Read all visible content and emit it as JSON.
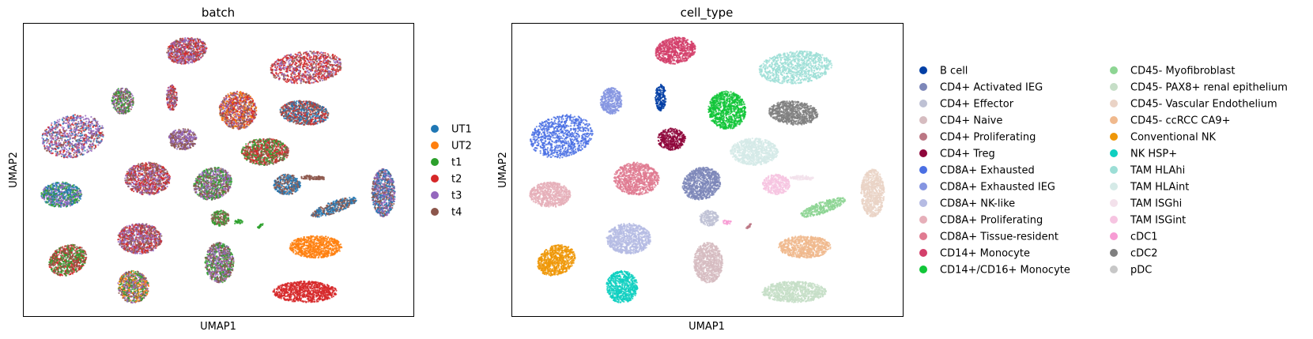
{
  "chart_data": [
    {
      "type": "scatter",
      "title": "batch",
      "xlabel": "UMAP1",
      "ylabel": "UMAP2",
      "legend": "right, outside",
      "series": [
        {
          "name": "UT1",
          "color": "#1f77b4"
        },
        {
          "name": "UT2",
          "color": "#ff7f0e"
        },
        {
          "name": "t1",
          "color": "#2ca02c"
        },
        {
          "name": "t2",
          "color": "#d62728"
        },
        {
          "name": "t3",
          "color": "#9467bd"
        },
        {
          "name": "t4",
          "color": "#8c564b"
        }
      ],
      "clusters": [
        {
          "x": 0.126,
          "y": 0.615,
          "rx": 0.081,
          "ry": 0.072,
          "rot": -12,
          "mix": [
            "t3",
            "t3",
            "t3",
            "t4",
            "t2",
            "UT1"
          ]
        },
        {
          "x": 0.418,
          "y": 0.908,
          "rx": 0.052,
          "ry": 0.045,
          "rot": -10,
          "mix": [
            "t4",
            "t2",
            "t3"
          ]
        },
        {
          "x": 0.725,
          "y": 0.85,
          "rx": 0.094,
          "ry": 0.055,
          "rot": -5,
          "mix": [
            "t2",
            "t4",
            "t3",
            "t2"
          ]
        },
        {
          "x": 0.254,
          "y": 0.736,
          "rx": 0.028,
          "ry": 0.045,
          "rot": 0,
          "mix": [
            "t1",
            "t3",
            "t4"
          ]
        },
        {
          "x": 0.38,
          "y": 0.747,
          "rx": 0.014,
          "ry": 0.045,
          "rot": 0,
          "mix": [
            "t4",
            "t2",
            "t3"
          ]
        },
        {
          "x": 0.55,
          "y": 0.704,
          "rx": 0.048,
          "ry": 0.065,
          "rot": -20,
          "mix": [
            "t4",
            "t3",
            "UT2",
            "t2"
          ]
        },
        {
          "x": 0.72,
          "y": 0.695,
          "rx": 0.063,
          "ry": 0.041,
          "rot": 5,
          "mix": [
            "t4",
            "t2",
            "UT1"
          ]
        },
        {
          "x": 0.408,
          "y": 0.605,
          "rx": 0.036,
          "ry": 0.037,
          "rot": 0,
          "mix": [
            "t3",
            "t4"
          ]
        },
        {
          "x": 0.62,
          "y": 0.562,
          "rx": 0.061,
          "ry": 0.046,
          "rot": 0,
          "mix": [
            "t4",
            "t2",
            "t1"
          ]
        },
        {
          "x": 0.318,
          "y": 0.47,
          "rx": 0.058,
          "ry": 0.056,
          "rot": 0,
          "mix": [
            "t4",
            "t2",
            "t3"
          ]
        },
        {
          "x": 0.485,
          "y": 0.453,
          "rx": 0.05,
          "ry": 0.054,
          "rot": -20,
          "mix": [
            "t1",
            "t4",
            "t3"
          ]
        },
        {
          "x": 0.097,
          "y": 0.415,
          "rx": 0.052,
          "ry": 0.043,
          "rot": 0,
          "mix": [
            "t1",
            "UT1",
            "t3"
          ]
        },
        {
          "x": 0.676,
          "y": 0.45,
          "rx": 0.035,
          "ry": 0.035,
          "rot": 0,
          "mix": [
            "UT1",
            "t4"
          ]
        },
        {
          "x": 0.796,
          "y": 0.372,
          "rx": 0.062,
          "ry": 0.02,
          "rot": -20,
          "mix": [
            "UT1",
            "t4"
          ]
        },
        {
          "x": 0.923,
          "y": 0.421,
          "rx": 0.03,
          "ry": 0.082,
          "rot": 0,
          "mix": [
            "t4",
            "t3",
            "UT1"
          ]
        },
        {
          "x": 0.504,
          "y": 0.335,
          "rx": 0.024,
          "ry": 0.027,
          "rot": 0,
          "mix": [
            "t1",
            "t4"
          ]
        },
        {
          "x": 0.298,
          "y": 0.265,
          "rx": 0.057,
          "ry": 0.052,
          "rot": 0,
          "mix": [
            "t3",
            "t4",
            "t2"
          ]
        },
        {
          "x": 0.749,
          "y": 0.237,
          "rx": 0.067,
          "ry": 0.038,
          "rot": 0,
          "mix": [
            "UT2"
          ]
        },
        {
          "x": 0.113,
          "y": 0.191,
          "rx": 0.05,
          "ry": 0.05,
          "rot": -25,
          "mix": [
            "t1",
            "t4",
            "t2"
          ]
        },
        {
          "x": 0.281,
          "y": 0.1,
          "rx": 0.04,
          "ry": 0.055,
          "rot": 0,
          "mix": [
            "t3",
            "t1",
            "UT2",
            "t4"
          ]
        },
        {
          "x": 0.502,
          "y": 0.183,
          "rx": 0.037,
          "ry": 0.069,
          "rot": 0,
          "mix": [
            "t4",
            "t1",
            "t3"
          ]
        },
        {
          "x": 0.722,
          "y": 0.083,
          "rx": 0.082,
          "ry": 0.036,
          "rot": 0,
          "mix": [
            "t2"
          ]
        },
        {
          "x": 0.55,
          "y": 0.322,
          "rx": 0.012,
          "ry": 0.008,
          "rot": 0,
          "mix": [
            "t1"
          ]
        },
        {
          "x": 0.737,
          "y": 0.474,
          "rx": 0.025,
          "ry": 0.008,
          "rot": 0,
          "mix": [
            "t4"
          ]
        },
        {
          "x": 0.761,
          "y": 0.471,
          "rx": 0.012,
          "ry": 0.006,
          "rot": 0,
          "mix": [
            "t4"
          ]
        },
        {
          "x": 0.607,
          "y": 0.308,
          "rx": 0.01,
          "ry": 0.004,
          "rot": -40,
          "mix": [
            "t1"
          ]
        }
      ]
    },
    {
      "type": "scatter",
      "title": "cell_type",
      "xlabel": "UMAP1",
      "ylabel": "UMAP2",
      "legend": "right, outside, two columns",
      "series": [
        {
          "name": "B cell",
          "color": "#023fa5"
        },
        {
          "name": "CD4+ Activated IEG",
          "color": "#7d87b9"
        },
        {
          "name": "CD4+ Effector",
          "color": "#bec1d4"
        },
        {
          "name": "CD4+ Naive",
          "color": "#d6bcc0"
        },
        {
          "name": "CD4+ Proliferating",
          "color": "#bb7784"
        },
        {
          "name": "CD4+ Treg",
          "color": "#8e063b"
        },
        {
          "name": "CD8A+ Exhausted",
          "color": "#4a6fe3"
        },
        {
          "name": "CD8A+ Exhausted IEG",
          "color": "#8595e1"
        },
        {
          "name": "CD8A+ NK-like",
          "color": "#b5bbe3"
        },
        {
          "name": "CD8A+ Proliferating",
          "color": "#e6afb9"
        },
        {
          "name": "CD8A+ Tissue-resident",
          "color": "#e07b91"
        },
        {
          "name": "CD14+ Monocyte",
          "color": "#d33f6a"
        },
        {
          "name": "CD14+/CD16+ Monocyte",
          "color": "#11c638"
        },
        {
          "name": "CD45- Myofibroblast",
          "color": "#8dd593"
        },
        {
          "name": "CD45- PAX8+ renal epithelium",
          "color": "#c6dec7"
        },
        {
          "name": "CD45- Vascular Endothelium",
          "color": "#ead3c6"
        },
        {
          "name": "CD45- ccRCC CA9+",
          "color": "#f0b98d"
        },
        {
          "name": "Conventional NK",
          "color": "#ef9708"
        },
        {
          "name": "NK HSP+",
          "color": "#0fcfc0"
        },
        {
          "name": "TAM HLAhi",
          "color": "#9cded6"
        },
        {
          "name": "TAM HLAint",
          "color": "#d5eae7"
        },
        {
          "name": "TAM ISGhi",
          "color": "#f3e1eb"
        },
        {
          "name": "TAM ISGint",
          "color": "#f6c4e1"
        },
        {
          "name": "cDC1",
          "color": "#f79cd4"
        },
        {
          "name": "cDC2",
          "color": "#7f7f7f"
        },
        {
          "name": "pDC",
          "color": "#c7c7c7"
        }
      ],
      "clusters": [
        {
          "x": 0.126,
          "y": 0.615,
          "rx": 0.081,
          "ry": 0.072,
          "rot": -12,
          "type": "CD8A+ Exhausted"
        },
        {
          "x": 0.418,
          "y": 0.908,
          "rx": 0.052,
          "ry": 0.045,
          "rot": -10,
          "type": "CD14+ Monocyte"
        },
        {
          "x": 0.725,
          "y": 0.85,
          "rx": 0.094,
          "ry": 0.055,
          "rot": -5,
          "type": "TAM HLAhi"
        },
        {
          "x": 0.254,
          "y": 0.736,
          "rx": 0.028,
          "ry": 0.045,
          "rot": 0,
          "type": "CD8A+ Exhausted IEG"
        },
        {
          "x": 0.38,
          "y": 0.747,
          "rx": 0.014,
          "ry": 0.045,
          "rot": 0,
          "type": "B cell"
        },
        {
          "x": 0.55,
          "y": 0.704,
          "rx": 0.048,
          "ry": 0.065,
          "rot": -20,
          "type": "CD14+/CD16+ Monocyte"
        },
        {
          "x": 0.72,
          "y": 0.695,
          "rx": 0.063,
          "ry": 0.041,
          "rot": 5,
          "type": "cDC2"
        },
        {
          "x": 0.408,
          "y": 0.605,
          "rx": 0.036,
          "ry": 0.037,
          "rot": 0,
          "type": "CD4+ Treg"
        },
        {
          "x": 0.62,
          "y": 0.562,
          "rx": 0.061,
          "ry": 0.046,
          "rot": 0,
          "type": "TAM HLAint"
        },
        {
          "x": 0.318,
          "y": 0.47,
          "rx": 0.058,
          "ry": 0.056,
          "rot": 0,
          "type": "CD8A+ Tissue-resident"
        },
        {
          "x": 0.485,
          "y": 0.453,
          "rx": 0.05,
          "ry": 0.054,
          "rot": -20,
          "type": "CD4+ Activated IEG"
        },
        {
          "x": 0.097,
          "y": 0.415,
          "rx": 0.052,
          "ry": 0.043,
          "rot": 0,
          "type": "CD8A+ Proliferating"
        },
        {
          "x": 0.676,
          "y": 0.45,
          "rx": 0.035,
          "ry": 0.035,
          "rot": 0,
          "type": "TAM ISGint"
        },
        {
          "x": 0.796,
          "y": 0.372,
          "rx": 0.062,
          "ry": 0.02,
          "rot": -20,
          "type": "CD45- Myofibroblast"
        },
        {
          "x": 0.923,
          "y": 0.421,
          "rx": 0.03,
          "ry": 0.082,
          "rot": 0,
          "type": "CD45- Vascular Endothelium"
        },
        {
          "x": 0.504,
          "y": 0.335,
          "rx": 0.024,
          "ry": 0.027,
          "rot": 0,
          "type": "CD4+ Effector"
        },
        {
          "x": 0.298,
          "y": 0.265,
          "rx": 0.057,
          "ry": 0.052,
          "rot": 0,
          "type": "CD8A+ NK-like"
        },
        {
          "x": 0.749,
          "y": 0.237,
          "rx": 0.067,
          "ry": 0.038,
          "rot": 0,
          "type": "CD45- ccRCC CA9+"
        },
        {
          "x": 0.113,
          "y": 0.191,
          "rx": 0.05,
          "ry": 0.05,
          "rot": -25,
          "type": "Conventional NK"
        },
        {
          "x": 0.281,
          "y": 0.1,
          "rx": 0.04,
          "ry": 0.055,
          "rot": 0,
          "type": "NK HSP+"
        },
        {
          "x": 0.502,
          "y": 0.183,
          "rx": 0.037,
          "ry": 0.069,
          "rot": 0,
          "type": "CD4+ Naive"
        },
        {
          "x": 0.722,
          "y": 0.083,
          "rx": 0.082,
          "ry": 0.036,
          "rot": 0,
          "type": "CD45- PAX8+ renal epithelium"
        },
        {
          "x": 0.55,
          "y": 0.322,
          "rx": 0.012,
          "ry": 0.008,
          "rot": 0,
          "type": "cDC1"
        },
        {
          "x": 0.737,
          "y": 0.474,
          "rx": 0.025,
          "ry": 0.008,
          "rot": 0,
          "type": "TAM ISGhi"
        },
        {
          "x": 0.761,
          "y": 0.471,
          "rx": 0.012,
          "ry": 0.006,
          "rot": 0,
          "type": "TAM ISGhi"
        },
        {
          "x": 0.607,
          "y": 0.308,
          "rx": 0.01,
          "ry": 0.004,
          "rot": -40,
          "type": "CD4+ Proliferating"
        }
      ]
    }
  ]
}
